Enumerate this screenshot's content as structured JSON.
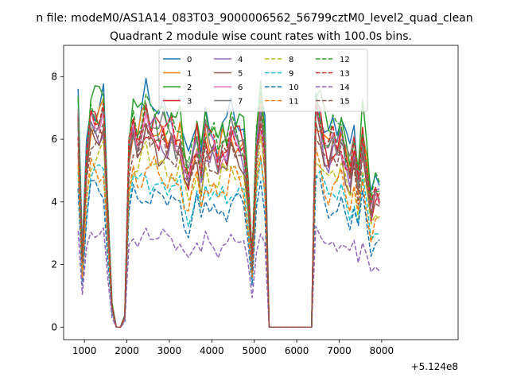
{
  "chart_data": {
    "type": "line",
    "suptitle": "n file: modeM0/AS1A14_083T03_9000006562_56799cztM0_level2_quad_clean",
    "title": "Quadrant 2 module wise count rates with 100.0s bins.",
    "xlabel": "",
    "ylabel": "",
    "x_offset_label": "+5.124e8",
    "xlim": [
      510,
      9800
    ],
    "ylim": [
      -0.4,
      9.0
    ],
    "xticks": [
      1000,
      2000,
      3000,
      4000,
      5000,
      6000,
      7000,
      8000
    ],
    "yticks": [
      0,
      2,
      4,
      6,
      8
    ],
    "grid": false,
    "legend_position": "top-center",
    "legend_columns": 4,
    "x": [
      850,
      950,
      1050,
      1150,
      1250,
      1350,
      1450,
      1550,
      1650,
      1750,
      1850,
      1950,
      2050,
      2150,
      2250,
      2350,
      2450,
      2550,
      2650,
      2750,
      2850,
      2950,
      3050,
      3150,
      3250,
      3350,
      3450,
      3550,
      3650,
      3750,
      3850,
      3950,
      4050,
      4150,
      4250,
      4350,
      4450,
      4550,
      4650,
      4750,
      4850,
      4950,
      5050,
      5150,
      5250,
      5350,
      5450,
      5550,
      5650,
      5750,
      5850,
      5950,
      6050,
      6150,
      6250,
      6350,
      6450,
      6550,
      6650,
      6750,
      6850,
      6950,
      7050,
      7150,
      7250,
      7350,
      7450,
      7550,
      7650,
      7750,
      7850,
      7950
    ],
    "profile": [
      0.95,
      0.3,
      0.75,
      0.96,
      0.94,
      0.93,
      0.97,
      0.5,
      0.1,
      0.0,
      0.0,
      0.05,
      0.8,
      0.93,
      0.85,
      0.9,
      0.97,
      0.9,
      0.92,
      0.88,
      0.9,
      0.86,
      0.9,
      0.84,
      0.87,
      0.74,
      0.68,
      0.78,
      0.86,
      0.72,
      0.88,
      0.82,
      0.84,
      0.76,
      0.83,
      0.8,
      0.9,
      0.87,
      0.85,
      0.82,
      0.62,
      0.3,
      0.82,
      1.0,
      0.82,
      0.0,
      0.0,
      0.0,
      0.0,
      0.0,
      0.0,
      0.0,
      0.0,
      0.0,
      0.0,
      0.0,
      1.0,
      0.94,
      0.84,
      0.8,
      0.86,
      0.82,
      0.88,
      0.78,
      0.7,
      0.82,
      0.66,
      0.88,
      0.72,
      0.54,
      0.62,
      0.6
    ],
    "series": [
      {
        "name": "0",
        "color": "#1f77b4",
        "dash": "solid",
        "scale": 7.7
      },
      {
        "name": "1",
        "color": "#ff7f0e",
        "dash": "solid",
        "scale": 7.0
      },
      {
        "name": "2",
        "color": "#2ca02c",
        "dash": "solid",
        "scale": 7.6
      },
      {
        "name": "3",
        "color": "#d62728",
        "dash": "solid",
        "scale": 6.9
      },
      {
        "name": "4",
        "color": "#9467bd",
        "dash": "solid",
        "scale": 6.7
      },
      {
        "name": "5",
        "color": "#8c564b",
        "dash": "solid",
        "scale": 6.4
      },
      {
        "name": "6",
        "color": "#e377c2",
        "dash": "solid",
        "scale": 6.9
      },
      {
        "name": "7",
        "color": "#7f7f7f",
        "dash": "solid",
        "scale": 7.1
      },
      {
        "name": "8",
        "color": "#bcbd22",
        "dash": "dashed",
        "scale": 5.8
      },
      {
        "name": "9",
        "color": "#17becf",
        "dash": "dashed",
        "scale": 5.1
      },
      {
        "name": "10",
        "color": "#1f77b4",
        "dash": "dashed",
        "scale": 4.6
      },
      {
        "name": "11",
        "color": "#ff7f0e",
        "dash": "dashed",
        "scale": 5.4
      },
      {
        "name": "12",
        "color": "#2ca02c",
        "dash": "dashed",
        "scale": 7.3
      },
      {
        "name": "13",
        "color": "#d62728",
        "dash": "dashed",
        "scale": 7.0
      },
      {
        "name": "14",
        "color": "#9467bd",
        "dash": "dashed",
        "scale": 3.2
      },
      {
        "name": "15",
        "color": "#8c564b",
        "dash": "dashed",
        "scale": 6.5
      }
    ]
  }
}
